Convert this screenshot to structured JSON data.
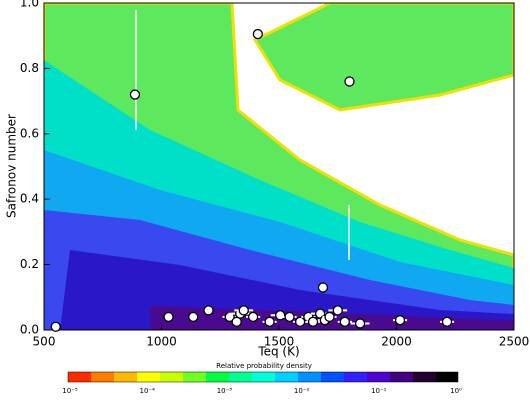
{
  "chart_data": {
    "type": "scatter",
    "xlabel": "Teq (K)",
    "ylabel": "Safronov number",
    "xlim": [
      500,
      2500
    ],
    "xticks": [
      500,
      1000,
      1500,
      2000,
      2500
    ],
    "ylim": [
      0,
      1
    ],
    "yticks": [
      {
        "value": 0,
        "label": "0.0"
      },
      0.2,
      0.4,
      0.6,
      0.8,
      {
        "value": 1,
        "label": "1.0"
      }
    ],
    "x": [
      550,
      887,
      1410,
      1800,
      1687,
      1030,
      1135,
      1200,
      1290,
      1320,
      1335,
      1350,
      1390,
      1460,
      1505,
      1545,
      1590,
      1625,
      1645,
      1675,
      1695,
      1715,
      1750,
      1780,
      1845,
      2015,
      2215
    ],
    "values": [
      0.01,
      0.72,
      0.905,
      0.76,
      0.13,
      0.04,
      0.04,
      0.06,
      0.04,
      0.025,
      0.05,
      0.06,
      0.04,
      0.025,
      0.045,
      0.04,
      0.025,
      0.04,
      0.025,
      0.05,
      0.03,
      0.04,
      0.06,
      0.025,
      0.02,
      0.03,
      0.025
    ],
    "xerr": [
      0,
      0,
      0,
      0,
      0,
      0,
      0,
      0,
      30,
      20,
      50,
      40,
      30,
      30,
      40,
      30,
      30,
      30,
      30,
      40,
      30,
      30,
      40,
      30,
      40,
      30,
      30
    ],
    "color": "#ffffff",
    "colorbar": {
      "label": "Relative probability density",
      "ticks": [
        "10⁻⁵",
        "10⁻⁴",
        "10⁻³",
        "10⁻²",
        "10⁻¹",
        "10⁰"
      ]
    }
  }
}
